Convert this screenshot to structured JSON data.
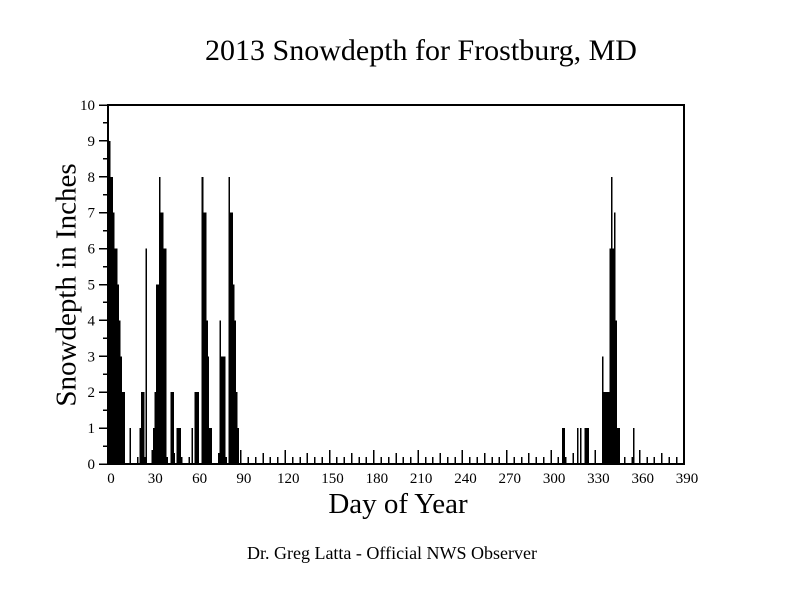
{
  "chart_data": {
    "type": "bar",
    "title": "2013 Snowdepth for Frostburg, MD",
    "xlabel": "Day of Year",
    "ylabel": "Snowdepth in Inches",
    "caption": "Dr. Greg Latta - Official NWS Observer",
    "xlim": [
      0,
      390
    ],
    "ylim": [
      0,
      10
    ],
    "x_tick_labels": [
      0,
      30,
      60,
      90,
      120,
      150,
      180,
      210,
      240,
      270,
      300,
      330,
      360,
      390
    ],
    "y_tick_labels": [
      0,
      1,
      2,
      3,
      4,
      5,
      6,
      7,
      8,
      9,
      10
    ],
    "x_minor_tick_step": 5,
    "x_medium_tick_step": 15,
    "y_minor_tick_step": 0.5,
    "grid": "off",
    "legend": "none",
    "bar_color": "#000000",
    "background": "#ffffff",
    "points_format": "[day_of_year, snowdepth_inches]",
    "points": [
      [
        1,
        9
      ],
      [
        2,
        8
      ],
      [
        3,
        8
      ],
      [
        4,
        7
      ],
      [
        5,
        6
      ],
      [
        6,
        6
      ],
      [
        7,
        5
      ],
      [
        8,
        4
      ],
      [
        9,
        3
      ],
      [
        10,
        2
      ],
      [
        11,
        2
      ],
      [
        15,
        1
      ],
      [
        22,
        1
      ],
      [
        23,
        2
      ],
      [
        24,
        2
      ],
      [
        26,
        6
      ],
      [
        31,
        1
      ],
      [
        32,
        2
      ],
      [
        33,
        5
      ],
      [
        34,
        5
      ],
      [
        35,
        8
      ],
      [
        36,
        7
      ],
      [
        37,
        7
      ],
      [
        38,
        6
      ],
      [
        39,
        6
      ],
      [
        43,
        2
      ],
      [
        44,
        2
      ],
      [
        47,
        1
      ],
      [
        48,
        1
      ],
      [
        49,
        1
      ],
      [
        57,
        1
      ],
      [
        59,
        2
      ],
      [
        60,
        2
      ],
      [
        61,
        2
      ],
      [
        64,
        8
      ],
      [
        65,
        7
      ],
      [
        66,
        7
      ],
      [
        67,
        4
      ],
      [
        68,
        3
      ],
      [
        69,
        1
      ],
      [
        70,
        1
      ],
      [
        76,
        4
      ],
      [
        77,
        3
      ],
      [
        78,
        3
      ],
      [
        79,
        3
      ],
      [
        82,
        8
      ],
      [
        83,
        7
      ],
      [
        84,
        7
      ],
      [
        85,
        5
      ],
      [
        86,
        4
      ],
      [
        87,
        2
      ],
      [
        88,
        1
      ],
      [
        308,
        1
      ],
      [
        309,
        1
      ],
      [
        318,
        1
      ],
      [
        320,
        1
      ],
      [
        323,
        1
      ],
      [
        324,
        1
      ],
      [
        325,
        1
      ],
      [
        335,
        3
      ],
      [
        336,
        2
      ],
      [
        337,
        2
      ],
      [
        338,
        2
      ],
      [
        339,
        2
      ],
      [
        340,
        6
      ],
      [
        341,
        8
      ],
      [
        342,
        6
      ],
      [
        343,
        7
      ],
      [
        344,
        4
      ],
      [
        345,
        1
      ],
      [
        346,
        1
      ],
      [
        356,
        1
      ]
    ]
  }
}
